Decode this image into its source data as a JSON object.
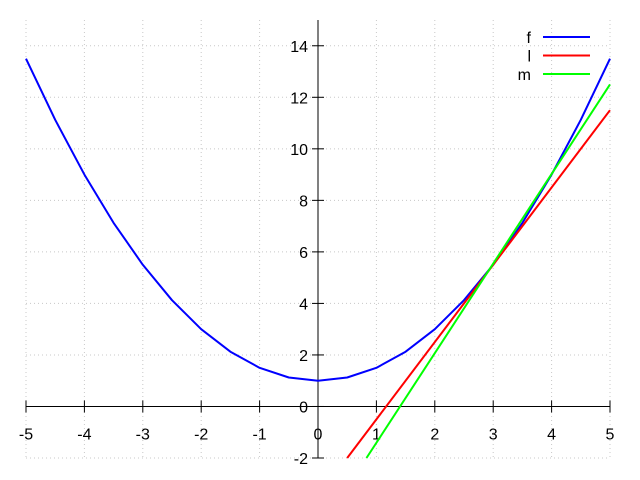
{
  "chart_data": {
    "type": "line",
    "title": "",
    "xlabel": "",
    "ylabel": "",
    "xlim": [
      -5,
      5
    ],
    "ylim": [
      -2,
      15
    ],
    "grid": true,
    "legend_position": "top-right",
    "x_ticks": [
      -5,
      -4,
      -3,
      -2,
      -1,
      0,
      1,
      2,
      3,
      4,
      5
    ],
    "y_ticks": [
      -2,
      0,
      2,
      4,
      6,
      8,
      10,
      12,
      14
    ],
    "series": [
      {
        "name": "f",
        "color": "#0000ff",
        "x": [
          -5,
          -4.5,
          -4,
          -3.5,
          -3,
          -2.5,
          -2,
          -1.5,
          -1,
          -0.5,
          0,
          0.5,
          1,
          1.5,
          2,
          2.5,
          3,
          3.5,
          4,
          4.5,
          5
        ],
        "y": [
          13.5,
          11.125,
          9,
          7.125,
          5.5,
          4.125,
          3,
          2.125,
          1.5,
          1.125,
          1,
          1.125,
          1.5,
          2.125,
          3,
          4.125,
          5.5,
          7.125,
          9,
          11.125,
          13.5
        ]
      },
      {
        "name": "l",
        "color": "#ff0000",
        "x": [
          0.5,
          5
        ],
        "y": [
          -2,
          11.5
        ]
      },
      {
        "name": "m",
        "color": "#00ff00",
        "x": [
          0.83,
          5
        ],
        "y": [
          -2,
          12.5
        ]
      }
    ]
  }
}
